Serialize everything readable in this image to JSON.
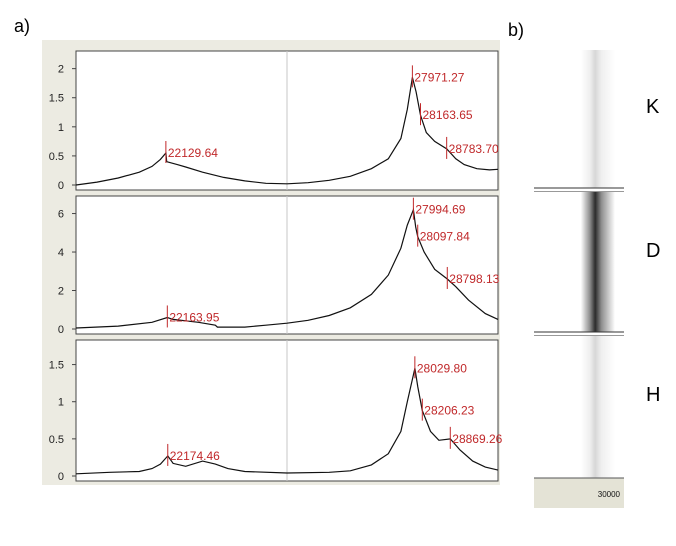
{
  "panel_labels": {
    "a": "a)",
    "b": "b)"
  },
  "lanes": [
    "K",
    "D",
    "H"
  ],
  "gel_axis_label": "30000",
  "colors": {
    "trace": "#111111",
    "peak_marker": "#c0282a",
    "frame_bg": "#ecebe2",
    "grid": "#c7c7c7"
  },
  "chart_data": [
    {
      "type": "line",
      "name": "K",
      "xlim": [
        20000,
        30000
      ],
      "ylim": [
        0,
        2.2
      ],
      "yticks": [
        0,
        0.5,
        1,
        1.5,
        2
      ],
      "ytick_labels": [
        "0",
        "0.5",
        "1",
        "1.5",
        "2"
      ],
      "grid": true,
      "points": [
        [
          20000,
          0.0
        ],
        [
          20500,
          0.05
        ],
        [
          21000,
          0.12
        ],
        [
          21500,
          0.22
        ],
        [
          21800,
          0.32
        ],
        [
          22000,
          0.44
        ],
        [
          22129.64,
          0.55
        ],
        [
          22150,
          0.4
        ],
        [
          22400,
          0.35
        ],
        [
          22600,
          0.31
        ],
        [
          23000,
          0.22
        ],
        [
          23500,
          0.13
        ],
        [
          24000,
          0.07
        ],
        [
          24500,
          0.03
        ],
        [
          25000,
          0.02
        ],
        [
          25500,
          0.04
        ],
        [
          26000,
          0.08
        ],
        [
          26500,
          0.15
        ],
        [
          27000,
          0.28
        ],
        [
          27400,
          0.45
        ],
        [
          27700,
          0.8
        ],
        [
          27850,
          1.3
        ],
        [
          27971.27,
          1.85
        ],
        [
          28060,
          1.6
        ],
        [
          28163.65,
          1.2
        ],
        [
          28300,
          0.9
        ],
        [
          28500,
          0.75
        ],
        [
          28783.7,
          0.62
        ],
        [
          29000,
          0.45
        ],
        [
          29200,
          0.35
        ],
        [
          29500,
          0.28
        ],
        [
          29800,
          0.26
        ],
        [
          30000,
          0.27
        ]
      ],
      "peaks": [
        {
          "x": 22129.64,
          "y": 0.55,
          "label": "22129.64"
        },
        {
          "x": 27971.27,
          "y": 1.85,
          "label": "27971.27"
        },
        {
          "x": 28163.65,
          "y": 1.2,
          "label": "28163.65"
        },
        {
          "x": 28783.7,
          "y": 0.62,
          "label": "28783.70"
        }
      ]
    },
    {
      "type": "line",
      "name": "D",
      "xlim": [
        20000,
        30000
      ],
      "ylim": [
        0,
        6.6
      ],
      "yticks": [
        0,
        2,
        4,
        6
      ],
      "ytick_labels": [
        "0",
        "2",
        "4",
        "6"
      ],
      "grid": true,
      "points": [
        [
          20000,
          0.05
        ],
        [
          21000,
          0.15
        ],
        [
          21800,
          0.35
        ],
        [
          22163.95,
          0.6
        ],
        [
          22300,
          0.5
        ],
        [
          22900,
          0.35
        ],
        [
          23300,
          0.2
        ],
        [
          23350,
          0.1
        ],
        [
          24000,
          0.1
        ],
        [
          24500,
          0.2
        ],
        [
          25000,
          0.3
        ],
        [
          25500,
          0.45
        ],
        [
          26000,
          0.7
        ],
        [
          26500,
          1.1
        ],
        [
          27000,
          1.8
        ],
        [
          27400,
          2.8
        ],
        [
          27700,
          4.2
        ],
        [
          27850,
          5.4
        ],
        [
          27994.69,
          6.2
        ],
        [
          28050,
          5.3
        ],
        [
          28097.84,
          4.8
        ],
        [
          28250,
          4.0
        ],
        [
          28500,
          3.1
        ],
        [
          28798.13,
          2.6
        ],
        [
          29000,
          2.2
        ],
        [
          29300,
          1.5
        ],
        [
          29700,
          0.8
        ],
        [
          30000,
          0.5
        ]
      ],
      "peaks": [
        {
          "x": 22163.95,
          "y": 0.6,
          "label": "22163.95"
        },
        {
          "x": 27994.69,
          "y": 6.2,
          "label": "27994.69"
        },
        {
          "x": 28097.84,
          "y": 4.8,
          "label": "28097.84"
        },
        {
          "x": 28798.13,
          "y": 2.6,
          "label": "28798.13"
        }
      ]
    },
    {
      "type": "line",
      "name": "H",
      "xlim": [
        20000,
        30000
      ],
      "ylim": [
        0,
        1.75
      ],
      "yticks": [
        0,
        0.5,
        1,
        1.5
      ],
      "ytick_labels": [
        "0",
        "0.5",
        "1",
        "1.5"
      ],
      "grid": true,
      "points": [
        [
          20000,
          0.03
        ],
        [
          20800,
          0.05
        ],
        [
          21500,
          0.06
        ],
        [
          21800,
          0.1
        ],
        [
          22000,
          0.16
        ],
        [
          22174.46,
          0.27
        ],
        [
          22300,
          0.17
        ],
        [
          22600,
          0.13
        ],
        [
          23000,
          0.2
        ],
        [
          23300,
          0.16
        ],
        [
          23600,
          0.1
        ],
        [
          24000,
          0.06
        ],
        [
          25000,
          0.04
        ],
        [
          26000,
          0.05
        ],
        [
          26500,
          0.07
        ],
        [
          27000,
          0.15
        ],
        [
          27400,
          0.3
        ],
        [
          27700,
          0.6
        ],
        [
          27850,
          1.0
        ],
        [
          28029.8,
          1.45
        ],
        [
          28100,
          1.2
        ],
        [
          28206.23,
          0.88
        ],
        [
          28400,
          0.6
        ],
        [
          28600,
          0.48
        ],
        [
          28869.26,
          0.5
        ],
        [
          29100,
          0.35
        ],
        [
          29400,
          0.2
        ],
        [
          29700,
          0.12
        ],
        [
          30000,
          0.08
        ]
      ],
      "peaks": [
        {
          "x": 22174.46,
          "y": 0.27,
          "label": "22174.46"
        },
        {
          "x": 28029.8,
          "y": 1.45,
          "label": "28029.80"
        },
        {
          "x": 28206.23,
          "y": 0.88,
          "label": "28206.23"
        },
        {
          "x": 28869.26,
          "y": 0.5,
          "label": "28869.26"
        }
      ]
    }
  ]
}
